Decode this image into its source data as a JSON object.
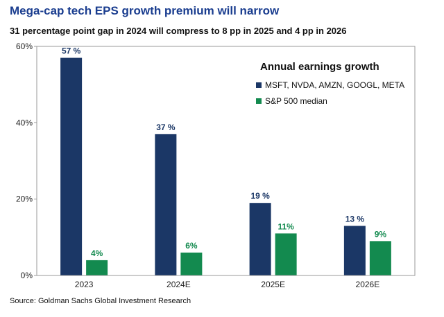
{
  "header": {
    "title": "Mega-cap tech EPS growth premium will narrow",
    "subtitle": "31 percentage point gap in 2024 will compress to 8 pp in 2025 and 4 pp in 2026",
    "source": "Source: Goldman Sachs Global Investment Research"
  },
  "chart_data": {
    "type": "bar",
    "title": "Annual earnings growth",
    "categories": [
      "2023",
      "2024E",
      "2025E",
      "2026E"
    ],
    "series": [
      {
        "name": "MSFT, NVDA, AMZN, GOOGL, META",
        "values": [
          57,
          37,
          19,
          13
        ],
        "labels": [
          "57 %",
          "37 %",
          "19 %",
          "13 %"
        ],
        "color": "#1b3766"
      },
      {
        "name": "S&P 500 median",
        "values": [
          4,
          6,
          11,
          9
        ],
        "labels": [
          "4%",
          "6%",
          "11%",
          "9%"
        ],
        "color": "#138a4f"
      }
    ],
    "yticks": [
      0,
      20,
      40,
      60
    ],
    "ytick_labels": [
      "0%",
      "20%",
      "40%",
      "60%"
    ],
    "ylim": [
      0,
      60
    ],
    "grid": false,
    "legend_position": "top-right"
  }
}
